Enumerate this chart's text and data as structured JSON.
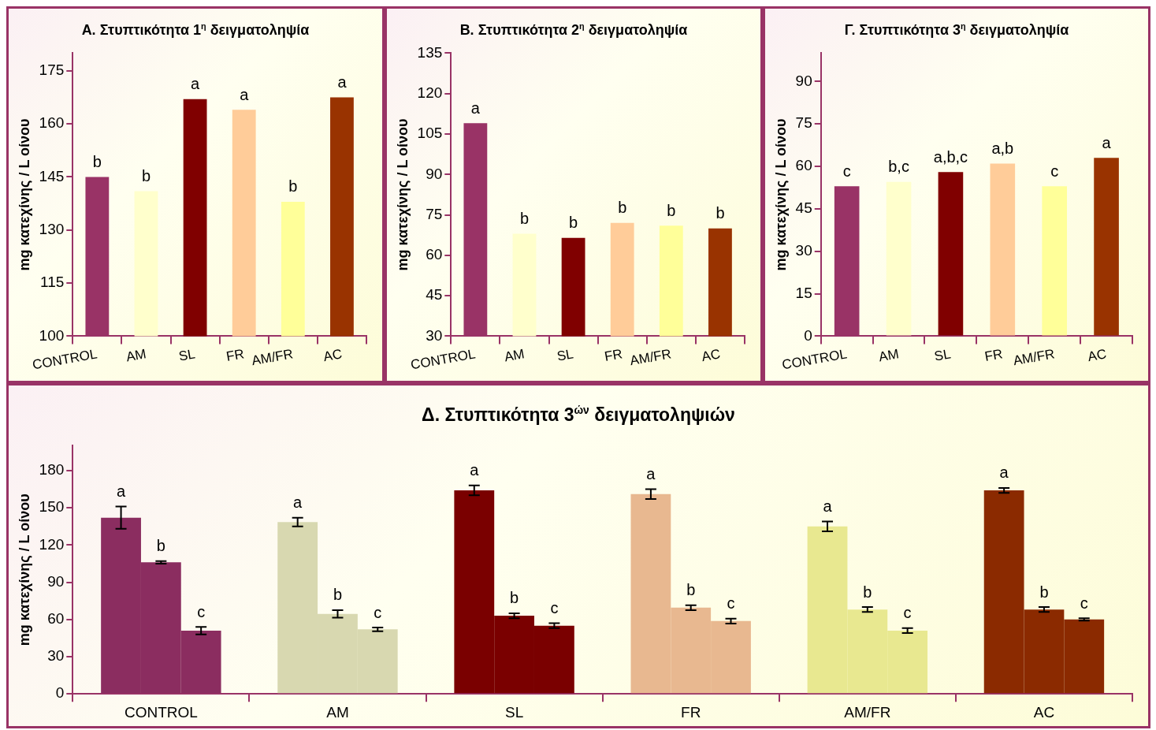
{
  "chart_data": [
    {
      "type": "bar",
      "title": "Α. Στυπτικότητα 1$^{η}$ δειγματοληψία",
      "ylabel": "mg κατεχίνης / L οίνου",
      "categories": [
        "CONTROL",
        "AM",
        "SL",
        "FR",
        "AM/FR",
        "AC"
      ],
      "values": [
        145,
        141,
        167,
        164,
        138,
        167.5
      ],
      "colors": [
        "#993366",
        "#ffffcc",
        "#800000",
        "#ffcc99",
        "#ffff99",
        "#993300"
      ],
      "value_labels": [
        "b",
        "b",
        "a",
        "a",
        "b",
        "a"
      ],
      "ylim": [
        100,
        180
      ],
      "yticks": [
        100,
        115,
        130,
        145,
        160,
        175
      ],
      "grid": false
    },
    {
      "type": "bar",
      "title": "Β. Στυπτικότητα 2$^{η}$ δειγματοληψία",
      "ylabel": "mg κατεχίνης / L οίνου",
      "categories": [
        "CONTROL",
        "AM",
        "SL",
        "FR",
        "AM/FR",
        "AC"
      ],
      "values": [
        109,
        68,
        66.5,
        72,
        71,
        70
      ],
      "colors": [
        "#993366",
        "#ffffcc",
        "#800000",
        "#ffcc99",
        "#ffff99",
        "#993300"
      ],
      "value_labels": [
        "a",
        "b",
        "b",
        "b",
        "b",
        "b"
      ],
      "ylim": [
        30,
        135
      ],
      "yticks": [
        30,
        45,
        60,
        75,
        90,
        105,
        120,
        135
      ],
      "grid": false
    },
    {
      "type": "bar",
      "title": "Γ. Στυπτικότητα 3$^{η}$ δειγματοληψία",
      "ylabel": "mg κατεχίνης / L οίνου",
      "categories": [
        "CONTROL",
        "AM",
        "SL",
        "FR",
        "AM/FR",
        "AC"
      ],
      "values": [
        53,
        54.5,
        58,
        61,
        53,
        63
      ],
      "colors": [
        "#993366",
        "#ffffcc",
        "#800000",
        "#ffcc99",
        "#ffff99",
        "#993300"
      ],
      "value_labels": [
        "c",
        "b,c",
        "a,b,c",
        "a,b",
        "c",
        "a"
      ],
      "ylim": [
        0,
        100
      ],
      "yticks": [
        0,
        15,
        30,
        45,
        60,
        75,
        90
      ],
      "grid": false
    },
    {
      "type": "bar",
      "title": "Δ. Στυπτικότητα 3$^{ών}$ δειγματοληψιών",
      "ylabel": "mg κατεχίνης / L οίνου",
      "categories": [
        "CONTROL",
        "AM",
        "SL",
        "FR",
        "AM/FR",
        "AC"
      ],
      "series": [
        {
          "colors": [
            "#8b2d60",
            "#d8d8b0",
            "#7a0000",
            "#e8b890",
            "#e8e890",
            "#8b2a00"
          ],
          "values": [
            142,
            138.5,
            164,
            161,
            135,
            164
          ],
          "errors": [
            9,
            3.5,
            4,
            4,
            4,
            2
          ],
          "value_labels": [
            "a",
            "a",
            "a",
            "a",
            "a",
            "a"
          ]
        },
        {
          "colors": [
            "#8b2d60",
            "#d8d8b0",
            "#7a0000",
            "#e8b890",
            "#e8e890",
            "#8b2a00"
          ],
          "values": [
            106,
            64.5,
            63,
            69.5,
            68,
            68
          ],
          "errors": [
            1,
            3,
            2,
            2,
            2,
            2
          ],
          "value_labels": [
            "b",
            "b",
            "b",
            "b",
            "b",
            "b"
          ]
        },
        {
          "colors": [
            "#8b2d60",
            "#d8d8b0",
            "#7a0000",
            "#e8b890",
            "#e8e890",
            "#8b2a00"
          ],
          "values": [
            51,
            52,
            55,
            58.7,
            51,
            60
          ],
          "errors": [
            3,
            1.5,
            2,
            2,
            2,
            1
          ],
          "value_labels": [
            "c",
            "c",
            "c",
            "c",
            "c",
            "c"
          ]
        }
      ],
      "ylim": [
        0,
        200
      ],
      "yticks": [
        0,
        30,
        60,
        90,
        120,
        150,
        180
      ],
      "grid": false
    }
  ]
}
